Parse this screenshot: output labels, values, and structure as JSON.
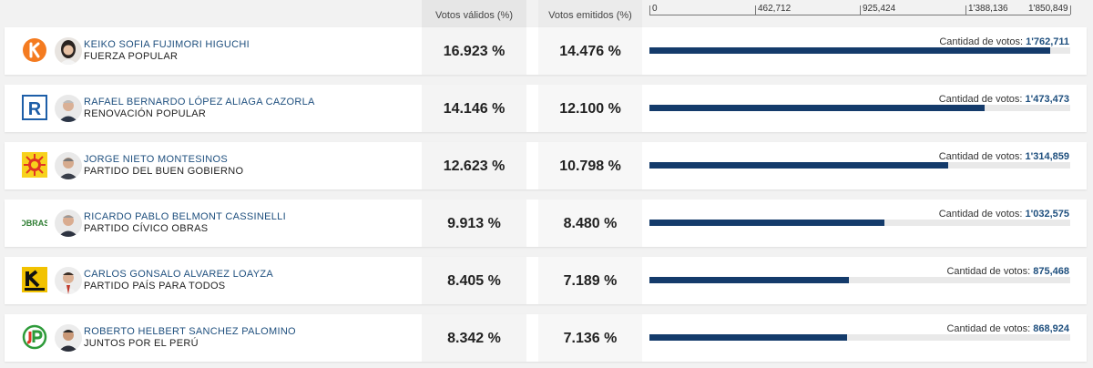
{
  "header": {
    "valid_label": "Votos válidos (%)",
    "emitted_label": "Votos emitidos (%)",
    "axis_ticks": [
      "0",
      "462,712",
      "925,424",
      "1'388,136",
      "1'850,849"
    ]
  },
  "chart_data": {
    "type": "bar",
    "orientation": "horizontal",
    "xlim": [
      0,
      1850849
    ],
    "categories": [
      "KEIKO SOFIA FUJIMORI HIGUCHI",
      "RAFAEL BERNARDO LÓPEZ ALIAGA CAZORLA",
      "JORGE NIETO MONTESINOS",
      "RICARDO PABLO BELMONT CASSINELLI",
      "CARLOS GONSALO ALVAREZ LOAYZA",
      "ROBERTO HELBERT SANCHEZ PALOMINO"
    ],
    "values": [
      1762711,
      1473473,
      1314859,
      1032575,
      875468,
      868924
    ]
  },
  "votes_prefix": "Cantidad de votos:",
  "rows": [
    {
      "candidate": "KEIKO SOFIA FUJIMORI HIGUCHI",
      "party": "FUERZA POPULAR",
      "valid_pct": "16.923 %",
      "emitted_pct": "14.476 %",
      "votes": "1'762,711",
      "votes_value": 1762711,
      "logo": "fuerza-popular-logo",
      "logo_color": "#f47b20"
    },
    {
      "candidate": "RAFAEL BERNARDO LÓPEZ ALIAGA CAZORLA",
      "party": "RENOVACIÓN POPULAR",
      "valid_pct": "14.146 %",
      "emitted_pct": "12.100 %",
      "votes": "1'473,473",
      "votes_value": 1473473,
      "logo": "renovacion-popular-logo",
      "logo_color": "#1d5ea8"
    },
    {
      "candidate": "JORGE NIETO MONTESINOS",
      "party": "PARTIDO DEL BUEN GOBIERNO",
      "valid_pct": "12.623 %",
      "emitted_pct": "10.798 %",
      "votes": "1'314,859",
      "votes_value": 1314859,
      "logo": "buen-gobierno-sun-logo",
      "logo_color": "#e03524"
    },
    {
      "candidate": "RICARDO PABLO BELMONT CASSINELLI",
      "party": "PARTIDO CÍVICO OBRAS",
      "valid_pct": "9.913 %",
      "emitted_pct": "8.480 %",
      "votes": "1'032,575",
      "votes_value": 1032575,
      "logo": "obras-logo",
      "logo_color": "#2e7d32",
      "logo_text": "OBRAS"
    },
    {
      "candidate": "CARLOS GONSALO ALVAREZ LOAYZA",
      "party": "PARTIDO PAÍS PARA TODOS",
      "valid_pct": "8.405 %",
      "emitted_pct": "7.189 %",
      "votes": "875,468",
      "votes_value": 875468,
      "logo": "pais-para-todos-logo",
      "logo_color": "#f2c200"
    },
    {
      "candidate": "ROBERTO HELBERT SANCHEZ PALOMINO",
      "party": "JUNTOS POR EL PERÚ",
      "valid_pct": "8.342 %",
      "emitted_pct": "7.136 %",
      "votes": "868,924",
      "votes_value": 868924,
      "logo": "juntos-por-el-peru-logo",
      "logo_color": "#2e9b3a"
    }
  ]
}
